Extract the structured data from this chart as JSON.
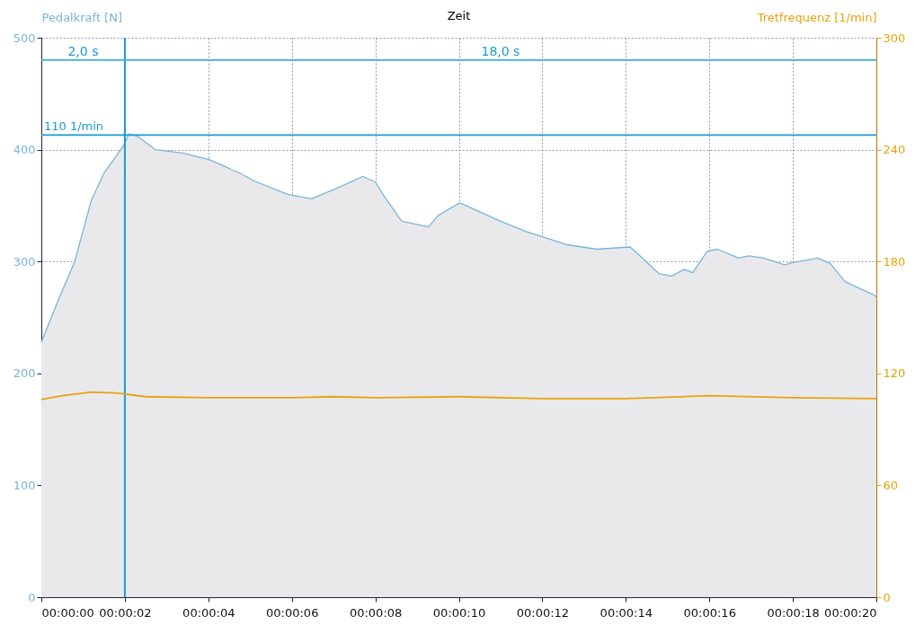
{
  "chart_data": {
    "type": "line",
    "title": "Zeit",
    "ylabel": "Pedalkraft [N]",
    "y2label": "Tretfrequenz [1/min]",
    "series": [
      {
        "type": "area",
        "color": "#7ab4d8",
        "x": [
          0,
          0.4,
          0.8,
          1.2,
          1.5,
          1.96,
          2.1,
          2.3,
          2.73,
          3.38,
          4.03,
          4.75,
          5.1,
          5.9,
          6.47,
          7.05,
          7.7,
          8.0,
          8.2,
          8.63,
          9.27,
          9.5,
          10.0,
          10.05,
          11.0,
          11.6,
          12.6,
          13.3,
          14.1,
          14.4,
          14.8,
          15.1,
          15.4,
          15.6,
          15.95,
          16.2,
          16.7,
          16.95,
          17.3,
          17.8,
          18.0,
          18.6,
          18.9,
          19.25,
          19.95,
          20
        ],
        "values": [
          228,
          265,
          300,
          355,
          379,
          403,
          414,
          412,
          400,
          397,
          391,
          379,
          372,
          360,
          356,
          365,
          376,
          371,
          359,
          336,
          331,
          341,
          352,
          352,
          336,
          327,
          315,
          311,
          313,
          303,
          289,
          287,
          293,
          290,
          309,
          311,
          303,
          305,
          303,
          297,
          299,
          303,
          298,
          282,
          270,
          268
        ]
      },
      {
        "type": "line",
        "axis": "y2",
        "color": "#e8a30c",
        "x": [
          0,
          0.5,
          1.2,
          1.8,
          2.5,
          4,
          6,
          7,
          8,
          10,
          12,
          14,
          16,
          18,
          20
        ],
        "values": [
          106,
          108,
          110,
          109.5,
          107.5,
          107,
          107,
          107.5,
          107,
          107.5,
          106.5,
          106.5,
          108,
          107,
          106.5
        ]
      }
    ],
    "xlim": [
      0,
      20
    ],
    "xticks": [
      {
        "value": 0,
        "label": "00:00:00"
      },
      {
        "value": 2,
        "label": "00:00:02"
      },
      {
        "value": 4,
        "label": "00:00:04"
      },
      {
        "value": 6,
        "label": "00:00:06"
      },
      {
        "value": 8,
        "label": "00:00:08"
      },
      {
        "value": 10,
        "label": "00:00:10"
      },
      {
        "value": 12,
        "label": "00:00:12"
      },
      {
        "value": 14,
        "label": "00:00:14"
      },
      {
        "value": 16,
        "label": "00:00:16"
      },
      {
        "value": 18,
        "label": "00:00:18"
      },
      {
        "value": 20,
        "label": "00:00:20"
      }
    ],
    "ylim": [
      0,
      500
    ],
    "yticks": [
      0,
      100,
      200,
      300,
      400,
      500
    ],
    "y2lim": [
      0,
      300
    ],
    "y2ticks": [
      0,
      60,
      120,
      180,
      240,
      300
    ],
    "ref_lines": [
      {
        "axis": "x",
        "value": 2,
        "color": "#1a9ad6"
      },
      {
        "axis": "y",
        "value": 413,
        "label": "110 1/min",
        "color": "#1a9ad6"
      },
      {
        "axis": "y",
        "value": 480,
        "color": "#3ab0d8"
      }
    ],
    "annotations": [
      {
        "text": "2,0 s",
        "x": 1,
        "y": 480
      },
      {
        "text": "18,0 s",
        "x": 11,
        "y": 480
      }
    ],
    "grid": true
  }
}
